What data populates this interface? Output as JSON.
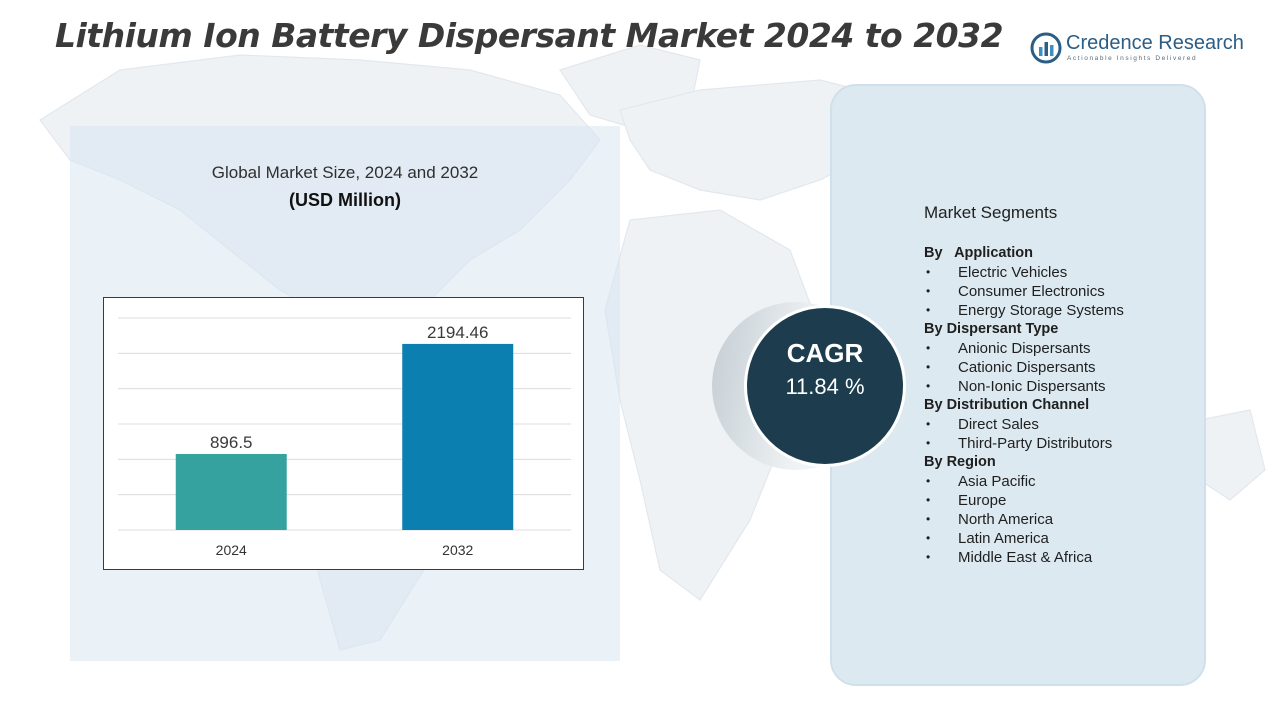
{
  "title": "Lithium Ion Battery Dispersant Market 2024 to 2032",
  "brand": {
    "name": "Credence Research",
    "tagline": "Actionable Insights Delivered",
    "logo_icon": "bar-chart-circle-icon",
    "color": "#2b5d85"
  },
  "chart_data": {
    "type": "bar",
    "title": "Global Market Size, 2024 and 2032",
    "subtitle": "(USD Million)",
    "categories": [
      "2024",
      "2032"
    ],
    "values": [
      896.5,
      2194.46
    ],
    "value_labels": [
      "896.5",
      "2194.46"
    ],
    "colors": [
      "#36a2a0",
      "#0a7fb0"
    ],
    "ylim": [
      0,
      2500
    ],
    "grid": true,
    "legend": "none"
  },
  "cagr": {
    "label": "CAGR",
    "value": "11.84 %"
  },
  "segments": {
    "heading": "Market Segments",
    "groups": [
      {
        "title": "By   Application",
        "items": [
          "Electric Vehicles",
          "Consumer Electronics",
          "Energy Storage Systems"
        ]
      },
      {
        "title": "By Dispersant Type",
        "items": [
          "Anionic Dispersants",
          "Cationic Dispersants",
          "Non-Ionic Dispersants"
        ]
      },
      {
        "title": "By Distribution Channel",
        "items": [
          "Direct Sales",
          "Third-Party Distributors"
        ]
      },
      {
        "title": "By Region",
        "items": [
          "Asia Pacific",
          "Europe",
          "North America",
          "Latin America",
          "Middle East & Africa"
        ]
      }
    ]
  }
}
